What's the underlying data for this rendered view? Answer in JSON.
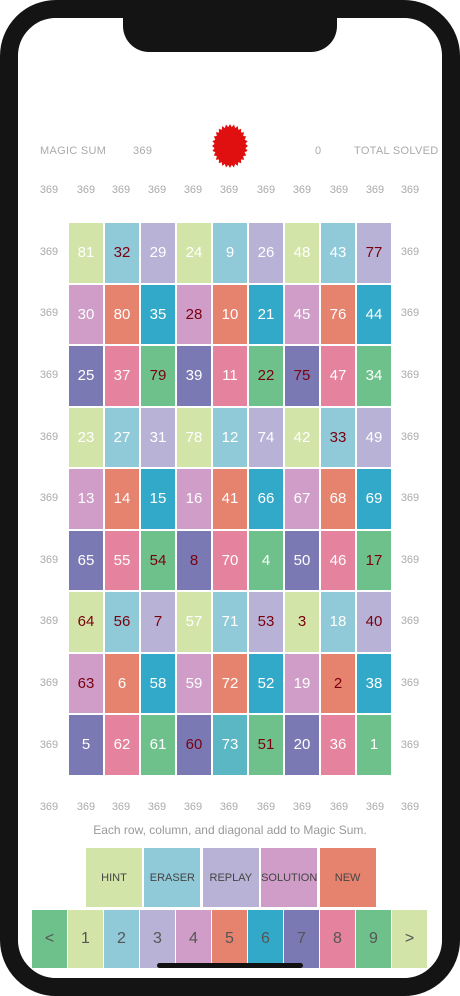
{
  "header": {
    "magic_sum_label": "MAGIC SUM",
    "magic_sum_value": "369",
    "solved_value": "0",
    "total_solved_label": "TOTAL SOLVED",
    "seal_color": "#e01010"
  },
  "column_sums_top": [
    "369",
    "369",
    "369",
    "369",
    "369",
    "369",
    "369",
    "369",
    "369",
    "369",
    "369"
  ],
  "row_sums_left": [
    "369",
    "369",
    "369",
    "369",
    "369",
    "369",
    "369",
    "369",
    "369"
  ],
  "row_sums_right": [
    "369",
    "369",
    "369",
    "369",
    "369",
    "369",
    "369",
    "369",
    "369"
  ],
  "column_sums_bottom": [
    "369",
    "369",
    "369",
    "369",
    "369",
    "369",
    "369",
    "369",
    "369",
    "369",
    "369"
  ],
  "grid": [
    [
      {
        "v": "81",
        "c": "#d2e4a8",
        "t": "#ffffff"
      },
      {
        "v": "32",
        "c": "#90c9d8",
        "t": "#7a0010"
      },
      {
        "v": "29",
        "c": "#b7b2d6",
        "t": "#ffffff"
      },
      {
        "v": "24",
        "c": "#d2e4a8",
        "t": "#ffffff"
      },
      {
        "v": "9",
        "c": "#90c9d8",
        "t": "#ffffff"
      },
      {
        "v": "26",
        "c": "#b7b2d6",
        "t": "#ffffff"
      },
      {
        "v": "48",
        "c": "#d2e4a8",
        "t": "#ffffff"
      },
      {
        "v": "43",
        "c": "#90c9d8",
        "t": "#ffffff"
      },
      {
        "v": "77",
        "c": "#b7b2d6",
        "t": "#7a0010"
      }
    ],
    [
      {
        "v": "30",
        "c": "#cf9dc7",
        "t": "#ffffff"
      },
      {
        "v": "80",
        "c": "#e6836f",
        "t": "#ffffff"
      },
      {
        "v": "35",
        "c": "#33a9c9",
        "t": "#ffffff"
      },
      {
        "v": "28",
        "c": "#cf9dc7",
        "t": "#7a0010"
      },
      {
        "v": "10",
        "c": "#e6836f",
        "t": "#ffffff"
      },
      {
        "v": "21",
        "c": "#33a9c9",
        "t": "#ffffff"
      },
      {
        "v": "45",
        "c": "#cf9dc7",
        "t": "#ffffff"
      },
      {
        "v": "76",
        "c": "#e6836f",
        "t": "#ffffff"
      },
      {
        "v": "44",
        "c": "#33a9c9",
        "t": "#ffffff"
      }
    ],
    [
      {
        "v": "25",
        "c": "#7b79b3",
        "t": "#ffffff"
      },
      {
        "v": "37",
        "c": "#e5829d",
        "t": "#ffffff"
      },
      {
        "v": "79",
        "c": "#6fc18b",
        "t": "#7a0010"
      },
      {
        "v": "39",
        "c": "#7b79b3",
        "t": "#ffffff"
      },
      {
        "v": "11",
        "c": "#e5829d",
        "t": "#ffffff"
      },
      {
        "v": "22",
        "c": "#6fc18b",
        "t": "#7a0010"
      },
      {
        "v": "75",
        "c": "#7b79b3",
        "t": "#7a0010"
      },
      {
        "v": "47",
        "c": "#e5829d",
        "t": "#ffffff"
      },
      {
        "v": "34",
        "c": "#6fc18b",
        "t": "#ffffff"
      }
    ],
    [
      {
        "v": "23",
        "c": "#d2e4a8",
        "t": "#ffffff"
      },
      {
        "v": "27",
        "c": "#90c9d8",
        "t": "#ffffff"
      },
      {
        "v": "31",
        "c": "#b7b2d6",
        "t": "#ffffff"
      },
      {
        "v": "78",
        "c": "#d2e4a8",
        "t": "#ffffff"
      },
      {
        "v": "12",
        "c": "#90c9d8",
        "t": "#ffffff"
      },
      {
        "v": "74",
        "c": "#b7b2d6",
        "t": "#ffffff"
      },
      {
        "v": "42",
        "c": "#d2e4a8",
        "t": "#ffffff"
      },
      {
        "v": "33",
        "c": "#90c9d8",
        "t": "#7a0010"
      },
      {
        "v": "49",
        "c": "#b7b2d6",
        "t": "#ffffff"
      }
    ],
    [
      {
        "v": "13",
        "c": "#cf9dc7",
        "t": "#ffffff"
      },
      {
        "v": "14",
        "c": "#e6836f",
        "t": "#ffffff"
      },
      {
        "v": "15",
        "c": "#33a9c9",
        "t": "#ffffff"
      },
      {
        "v": "16",
        "c": "#cf9dc7",
        "t": "#ffffff"
      },
      {
        "v": "41",
        "c": "#e6836f",
        "t": "#ffffff"
      },
      {
        "v": "66",
        "c": "#33a9c9",
        "t": "#ffffff"
      },
      {
        "v": "67",
        "c": "#cf9dc7",
        "t": "#ffffff"
      },
      {
        "v": "68",
        "c": "#e6836f",
        "t": "#ffffff"
      },
      {
        "v": "69",
        "c": "#33a9c9",
        "t": "#ffffff"
      }
    ],
    [
      {
        "v": "65",
        "c": "#7b79b3",
        "t": "#ffffff"
      },
      {
        "v": "55",
        "c": "#e5829d",
        "t": "#ffffff"
      },
      {
        "v": "54",
        "c": "#6fc18b",
        "t": "#7a0010"
      },
      {
        "v": "8",
        "c": "#7b79b3",
        "t": "#7a0010"
      },
      {
        "v": "70",
        "c": "#e5829d",
        "t": "#ffffff"
      },
      {
        "v": "4",
        "c": "#6fc18b",
        "t": "#ffffff"
      },
      {
        "v": "50",
        "c": "#7b79b3",
        "t": "#ffffff"
      },
      {
        "v": "46",
        "c": "#e5829d",
        "t": "#ffffff"
      },
      {
        "v": "17",
        "c": "#6fc18b",
        "t": "#7a0010"
      }
    ],
    [
      {
        "v": "64",
        "c": "#d2e4a8",
        "t": "#7a0010"
      },
      {
        "v": "56",
        "c": "#90c9d8",
        "t": "#7a0010"
      },
      {
        "v": "7",
        "c": "#b7b2d6",
        "t": "#7a0010"
      },
      {
        "v": "57",
        "c": "#d2e4a8",
        "t": "#ffffff"
      },
      {
        "v": "71",
        "c": "#90c9d8",
        "t": "#ffffff"
      },
      {
        "v": "53",
        "c": "#b7b2d6",
        "t": "#7a0010"
      },
      {
        "v": "3",
        "c": "#d2e4a8",
        "t": "#7a0010"
      },
      {
        "v": "18",
        "c": "#90c9d8",
        "t": "#ffffff"
      },
      {
        "v": "40",
        "c": "#b7b2d6",
        "t": "#7a0010"
      }
    ],
    [
      {
        "v": "63",
        "c": "#cf9dc7",
        "t": "#7a0010"
      },
      {
        "v": "6",
        "c": "#e6836f",
        "t": "#ffffff"
      },
      {
        "v": "58",
        "c": "#33a9c9",
        "t": "#ffffff"
      },
      {
        "v": "59",
        "c": "#cf9dc7",
        "t": "#ffffff"
      },
      {
        "v": "72",
        "c": "#e6836f",
        "t": "#ffffff"
      },
      {
        "v": "52",
        "c": "#33a9c9",
        "t": "#ffffff"
      },
      {
        "v": "19",
        "c": "#cf9dc7",
        "t": "#ffffff"
      },
      {
        "v": "2",
        "c": "#e6836f",
        "t": "#7a0010"
      },
      {
        "v": "38",
        "c": "#33a9c9",
        "t": "#ffffff"
      }
    ],
    [
      {
        "v": "5",
        "c": "#7b79b3",
        "t": "#ffffff"
      },
      {
        "v": "62",
        "c": "#e5829d",
        "t": "#ffffff"
      },
      {
        "v": "61",
        "c": "#6fc18b",
        "t": "#ffffff"
      },
      {
        "v": "60",
        "c": "#7b79b3",
        "t": "#7a0010"
      },
      {
        "v": "73",
        "c": "#5bb7c4",
        "t": "#ffffff"
      },
      {
        "v": "51",
        "c": "#6fc18b",
        "t": "#7a0010"
      },
      {
        "v": "20",
        "c": "#7b79b3",
        "t": "#ffffff"
      },
      {
        "v": "36",
        "c": "#e5829d",
        "t": "#ffffff"
      },
      {
        "v": "1",
        "c": "#6fc18b",
        "t": "#ffffff"
      }
    ]
  ],
  "instructions": "Each row, column, and diagonal add to Magic Sum.",
  "actions": [
    {
      "label": "HINT",
      "color": "#d2e4a8"
    },
    {
      "label": "ERASER",
      "color": "#90c9d8"
    },
    {
      "label": "REPLAY",
      "color": "#b7b2d6"
    },
    {
      "label": "SOLUTION",
      "color": "#cf9dc7"
    },
    {
      "label": "NEW",
      "color": "#e6836f"
    }
  ],
  "keypad": [
    {
      "label": "<",
      "color": "#6fc18b"
    },
    {
      "label": "1",
      "color": "#d2e4a8"
    },
    {
      "label": "2",
      "color": "#90c9d8"
    },
    {
      "label": "3",
      "color": "#b7b2d6"
    },
    {
      "label": "4",
      "color": "#cf9dc7"
    },
    {
      "label": "5",
      "color": "#e6836f"
    },
    {
      "label": "6",
      "color": "#33a9c9"
    },
    {
      "label": "7",
      "color": "#7b79b3"
    },
    {
      "label": "8",
      "color": "#e5829d"
    },
    {
      "label": "9",
      "color": "#6fc18b"
    },
    {
      "label": ">",
      "color": "#d2e4a8"
    }
  ]
}
